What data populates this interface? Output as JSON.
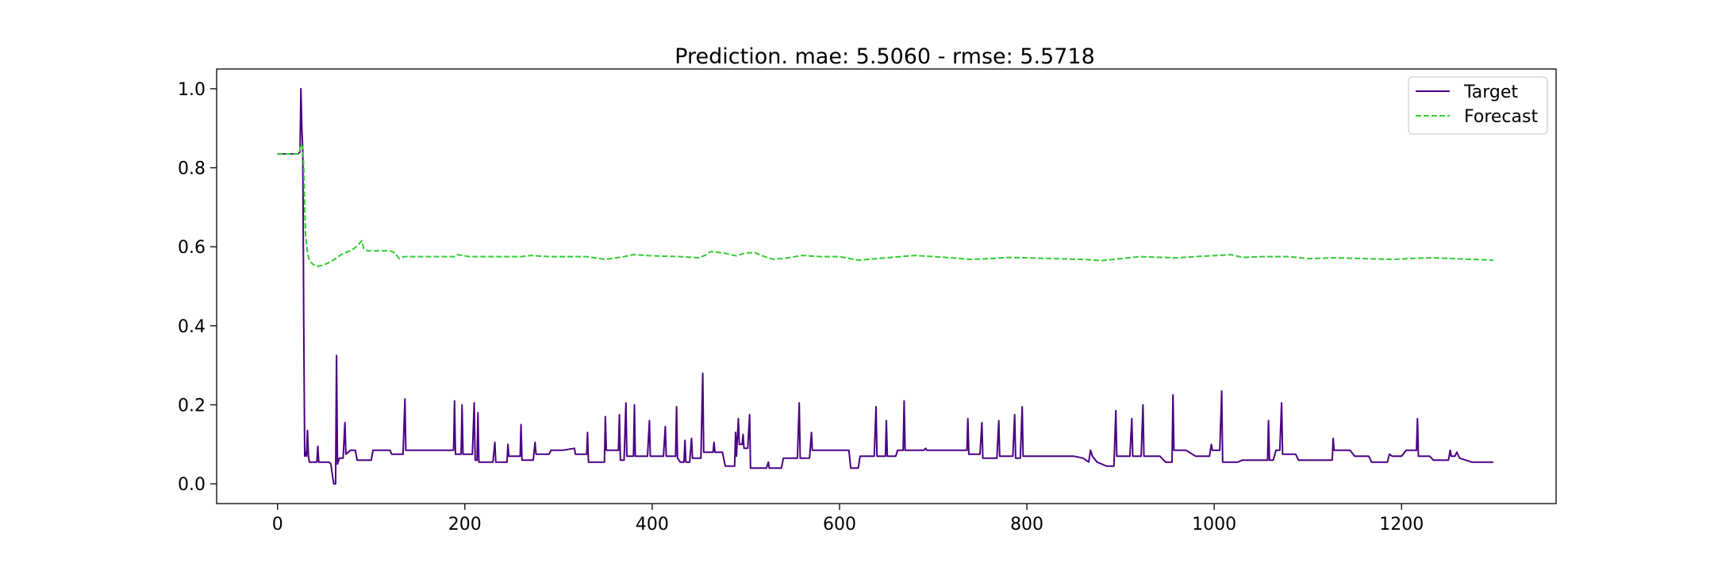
{
  "chart_data": {
    "type": "line",
    "title": "Prediction. mae: 5.5060 - rmse: 5.5718",
    "xlabel": "",
    "ylabel": "",
    "xlim": [
      -65,
      1365
    ],
    "ylim": [
      -0.05,
      1.05
    ],
    "x_ticks": [
      0,
      200,
      400,
      600,
      800,
      1000,
      1200
    ],
    "y_ticks": [
      0.0,
      0.2,
      0.4,
      0.6,
      0.8,
      1.0
    ],
    "x_tick_labels": [
      "0",
      "200",
      "400",
      "600",
      "800",
      "1000",
      "1200"
    ],
    "y_tick_labels": [
      "0.0",
      "0.2",
      "0.4",
      "0.6",
      "0.8",
      "1.0"
    ],
    "grid": false,
    "legend_position": "top-right",
    "colors": {
      "Target": "#4b0082",
      "Forecast": "#32cd32"
    },
    "series": [
      {
        "name": "Target",
        "style": "solid",
        "points": [
          [
            0,
            0.835
          ],
          [
            22,
            0.835
          ],
          [
            24,
            0.84
          ],
          [
            25,
            1.0
          ],
          [
            26,
            0.9
          ],
          [
            27,
            0.84
          ],
          [
            28,
            0.4
          ],
          [
            29,
            0.07
          ],
          [
            30,
            0.08
          ],
          [
            31,
            0.07
          ],
          [
            32,
            0.135
          ],
          [
            33,
            0.07
          ],
          [
            34,
            0.055
          ],
          [
            42,
            0.055
          ],
          [
            43,
            0.095
          ],
          [
            44,
            0.055
          ],
          [
            55,
            0.055
          ],
          [
            57,
            0.05
          ],
          [
            59,
            0.015
          ],
          [
            60,
            0.0
          ],
          [
            62,
            0.0
          ],
          [
            63,
            0.325
          ],
          [
            64,
            0.05
          ],
          [
            66,
            0.065
          ],
          [
            70,
            0.065
          ],
          [
            72,
            0.155
          ],
          [
            73,
            0.075
          ],
          [
            78,
            0.085
          ],
          [
            83,
            0.085
          ],
          [
            85,
            0.06
          ],
          [
            100,
            0.06
          ],
          [
            102,
            0.085
          ],
          [
            120,
            0.085
          ],
          [
            122,
            0.075
          ],
          [
            134,
            0.075
          ],
          [
            136,
            0.215
          ],
          [
            137,
            0.085
          ],
          [
            180,
            0.085
          ],
          [
            188,
            0.085
          ],
          [
            189,
            0.21
          ],
          [
            190,
            0.075
          ],
          [
            196,
            0.075
          ],
          [
            197,
            0.2
          ],
          [
            198,
            0.075
          ],
          [
            208,
            0.075
          ],
          [
            210,
            0.205
          ],
          [
            211,
            0.06
          ],
          [
            213,
            0.06
          ],
          [
            214,
            0.18
          ],
          [
            215,
            0.055
          ],
          [
            230,
            0.055
          ],
          [
            232,
            0.105
          ],
          [
            233,
            0.055
          ],
          [
            245,
            0.055
          ],
          [
            246,
            0.1
          ],
          [
            247,
            0.07
          ],
          [
            259,
            0.07
          ],
          [
            260,
            0.15
          ],
          [
            261,
            0.06
          ],
          [
            273,
            0.06
          ],
          [
            275,
            0.105
          ],
          [
            276,
            0.075
          ],
          [
            290,
            0.075
          ],
          [
            292,
            0.085
          ],
          [
            305,
            0.085
          ],
          [
            317,
            0.09
          ],
          [
            318,
            0.075
          ],
          [
            330,
            0.075
          ],
          [
            331,
            0.13
          ],
          [
            332,
            0.055
          ],
          [
            340,
            0.055
          ],
          [
            349,
            0.055
          ],
          [
            350,
            0.17
          ],
          [
            351,
            0.085
          ],
          [
            364,
            0.085
          ],
          [
            365,
            0.175
          ],
          [
            366,
            0.06
          ],
          [
            370,
            0.06
          ],
          [
            372,
            0.205
          ],
          [
            373,
            0.07
          ],
          [
            380,
            0.07
          ],
          [
            381,
            0.2
          ],
          [
            382,
            0.07
          ],
          [
            395,
            0.07
          ],
          [
            397,
            0.16
          ],
          [
            398,
            0.07
          ],
          [
            412,
            0.07
          ],
          [
            414,
            0.145
          ],
          [
            415,
            0.07
          ],
          [
            425,
            0.07
          ],
          [
            426,
            0.195
          ],
          [
            427,
            0.065
          ],
          [
            430,
            0.055
          ],
          [
            434,
            0.055
          ],
          [
            435,
            0.11
          ],
          [
            436,
            0.055
          ],
          [
            440,
            0.055
          ],
          [
            442,
            0.115
          ],
          [
            443,
            0.065
          ],
          [
            452,
            0.065
          ],
          [
            454,
            0.28
          ],
          [
            455,
            0.08
          ],
          [
            465,
            0.08
          ],
          [
            466,
            0.105
          ],
          [
            467,
            0.08
          ],
          [
            475,
            0.08
          ],
          [
            478,
            0.045
          ],
          [
            488,
            0.045
          ],
          [
            489,
            0.13
          ],
          [
            490,
            0.07
          ],
          [
            492,
            0.165
          ],
          [
            493,
            0.1
          ],
          [
            496,
            0.1
          ],
          [
            497,
            0.125
          ],
          [
            498,
            0.09
          ],
          [
            502,
            0.09
          ],
          [
            504,
            0.175
          ],
          [
            505,
            0.04
          ],
          [
            522,
            0.04
          ],
          [
            524,
            0.055
          ],
          [
            525,
            0.04
          ],
          [
            538,
            0.04
          ],
          [
            540,
            0.065
          ],
          [
            555,
            0.065
          ],
          [
            557,
            0.205
          ],
          [
            558,
            0.065
          ],
          [
            568,
            0.065
          ],
          [
            570,
            0.13
          ],
          [
            571,
            0.085
          ],
          [
            600,
            0.085
          ],
          [
            610,
            0.085
          ],
          [
            612,
            0.04
          ],
          [
            620,
            0.04
          ],
          [
            622,
            0.07
          ],
          [
            637,
            0.07
          ],
          [
            639,
            0.195
          ],
          [
            640,
            0.07
          ],
          [
            649,
            0.07
          ],
          [
            650,
            0.16
          ],
          [
            651,
            0.07
          ],
          [
            660,
            0.07
          ],
          [
            662,
            0.085
          ],
          [
            668,
            0.085
          ],
          [
            669,
            0.21
          ],
          [
            670,
            0.085
          ],
          [
            690,
            0.085
          ],
          [
            692,
            0.09
          ],
          [
            693,
            0.085
          ],
          [
            730,
            0.085
          ],
          [
            736,
            0.085
          ],
          [
            737,
            0.165
          ],
          [
            738,
            0.075
          ],
          [
            750,
            0.075
          ],
          [
            752,
            0.155
          ],
          [
            753,
            0.065
          ],
          [
            768,
            0.065
          ],
          [
            770,
            0.16
          ],
          [
            771,
            0.07
          ],
          [
            785,
            0.07
          ],
          [
            787,
            0.175
          ],
          [
            788,
            0.065
          ],
          [
            793,
            0.065
          ],
          [
            795,
            0.195
          ],
          [
            796,
            0.07
          ],
          [
            800,
            0.07
          ],
          [
            850,
            0.07
          ],
          [
            860,
            0.065
          ],
          [
            866,
            0.055
          ],
          [
            868,
            0.085
          ],
          [
            870,
            0.07
          ],
          [
            875,
            0.055
          ],
          [
            885,
            0.045
          ],
          [
            893,
            0.045
          ],
          [
            895,
            0.185
          ],
          [
            896,
            0.07
          ],
          [
            910,
            0.07
          ],
          [
            912,
            0.165
          ],
          [
            913,
            0.07
          ],
          [
            922,
            0.07
          ],
          [
            924,
            0.2
          ],
          [
            925,
            0.07
          ],
          [
            942,
            0.07
          ],
          [
            948,
            0.055
          ],
          [
            955,
            0.055
          ],
          [
            956,
            0.225
          ],
          [
            957,
            0.085
          ],
          [
            970,
            0.085
          ],
          [
            980,
            0.07
          ],
          [
            995,
            0.07
          ],
          [
            997,
            0.1
          ],
          [
            998,
            0.085
          ],
          [
            1006,
            0.085
          ],
          [
            1008,
            0.235
          ],
          [
            1009,
            0.055
          ],
          [
            1025,
            0.055
          ],
          [
            1030,
            0.06
          ],
          [
            1045,
            0.06
          ],
          [
            1057,
            0.06
          ],
          [
            1058,
            0.16
          ],
          [
            1059,
            0.06
          ],
          [
            1063,
            0.06
          ],
          [
            1066,
            0.085
          ],
          [
            1070,
            0.085
          ],
          [
            1072,
            0.205
          ],
          [
            1073,
            0.075
          ],
          [
            1087,
            0.075
          ],
          [
            1090,
            0.06
          ],
          [
            1120,
            0.06
          ],
          [
            1126,
            0.06
          ],
          [
            1127,
            0.115
          ],
          [
            1128,
            0.085
          ],
          [
            1145,
            0.085
          ],
          [
            1150,
            0.07
          ],
          [
            1165,
            0.07
          ],
          [
            1168,
            0.055
          ],
          [
            1185,
            0.055
          ],
          [
            1187,
            0.075
          ],
          [
            1190,
            0.07
          ],
          [
            1200,
            0.07
          ],
          [
            1205,
            0.085
          ],
          [
            1216,
            0.085
          ],
          [
            1217,
            0.165
          ],
          [
            1218,
            0.07
          ],
          [
            1230,
            0.07
          ],
          [
            1234,
            0.06
          ],
          [
            1250,
            0.06
          ],
          [
            1252,
            0.085
          ],
          [
            1253,
            0.07
          ],
          [
            1257,
            0.07
          ],
          [
            1259,
            0.08
          ],
          [
            1262,
            0.065
          ],
          [
            1275,
            0.055
          ],
          [
            1298,
            0.055
          ]
        ]
      },
      {
        "name": "Forecast",
        "style": "dashed",
        "points": [
          [
            0,
            0.835
          ],
          [
            23,
            0.835
          ],
          [
            25,
            0.86
          ],
          [
            27,
            0.85
          ],
          [
            28,
            0.8
          ],
          [
            29,
            0.7
          ],
          [
            30,
            0.63
          ],
          [
            32,
            0.585
          ],
          [
            34,
            0.565
          ],
          [
            38,
            0.555
          ],
          [
            42,
            0.55
          ],
          [
            48,
            0.553
          ],
          [
            55,
            0.56
          ],
          [
            62,
            0.57
          ],
          [
            68,
            0.58
          ],
          [
            72,
            0.585
          ],
          [
            78,
            0.59
          ],
          [
            84,
            0.6
          ],
          [
            88,
            0.61
          ],
          [
            90,
            0.615
          ],
          [
            92,
            0.595
          ],
          [
            96,
            0.59
          ],
          [
            110,
            0.59
          ],
          [
            120,
            0.59
          ],
          [
            125,
            0.585
          ],
          [
            130,
            0.57
          ],
          [
            135,
            0.575
          ],
          [
            150,
            0.575
          ],
          [
            190,
            0.575
          ],
          [
            192,
            0.58
          ],
          [
            205,
            0.575
          ],
          [
            230,
            0.575
          ],
          [
            260,
            0.575
          ],
          [
            270,
            0.578
          ],
          [
            290,
            0.575
          ],
          [
            330,
            0.575
          ],
          [
            350,
            0.568
          ],
          [
            370,
            0.575
          ],
          [
            380,
            0.58
          ],
          [
            400,
            0.577
          ],
          [
            430,
            0.575
          ],
          [
            450,
            0.572
          ],
          [
            458,
            0.58
          ],
          [
            462,
            0.588
          ],
          [
            475,
            0.585
          ],
          [
            490,
            0.577
          ],
          [
            500,
            0.585
          ],
          [
            510,
            0.585
          ],
          [
            520,
            0.575
          ],
          [
            530,
            0.568
          ],
          [
            545,
            0.572
          ],
          [
            560,
            0.578
          ],
          [
            580,
            0.575
          ],
          [
            600,
            0.575
          ],
          [
            620,
            0.566
          ],
          [
            640,
            0.57
          ],
          [
            665,
            0.575
          ],
          [
            680,
            0.578
          ],
          [
            700,
            0.575
          ],
          [
            720,
            0.572
          ],
          [
            740,
            0.568
          ],
          [
            760,
            0.57
          ],
          [
            780,
            0.573
          ],
          [
            800,
            0.572
          ],
          [
            830,
            0.57
          ],
          [
            860,
            0.568
          ],
          [
            880,
            0.565
          ],
          [
            900,
            0.57
          ],
          [
            920,
            0.575
          ],
          [
            945,
            0.573
          ],
          [
            960,
            0.572
          ],
          [
            980,
            0.575
          ],
          [
            1005,
            0.578
          ],
          [
            1018,
            0.58
          ],
          [
            1030,
            0.573
          ],
          [
            1050,
            0.575
          ],
          [
            1080,
            0.575
          ],
          [
            1100,
            0.57
          ],
          [
            1130,
            0.572
          ],
          [
            1160,
            0.57
          ],
          [
            1190,
            0.568
          ],
          [
            1215,
            0.571
          ],
          [
            1235,
            0.572
          ],
          [
            1255,
            0.57
          ],
          [
            1275,
            0.568
          ],
          [
            1298,
            0.566
          ]
        ]
      }
    ]
  }
}
